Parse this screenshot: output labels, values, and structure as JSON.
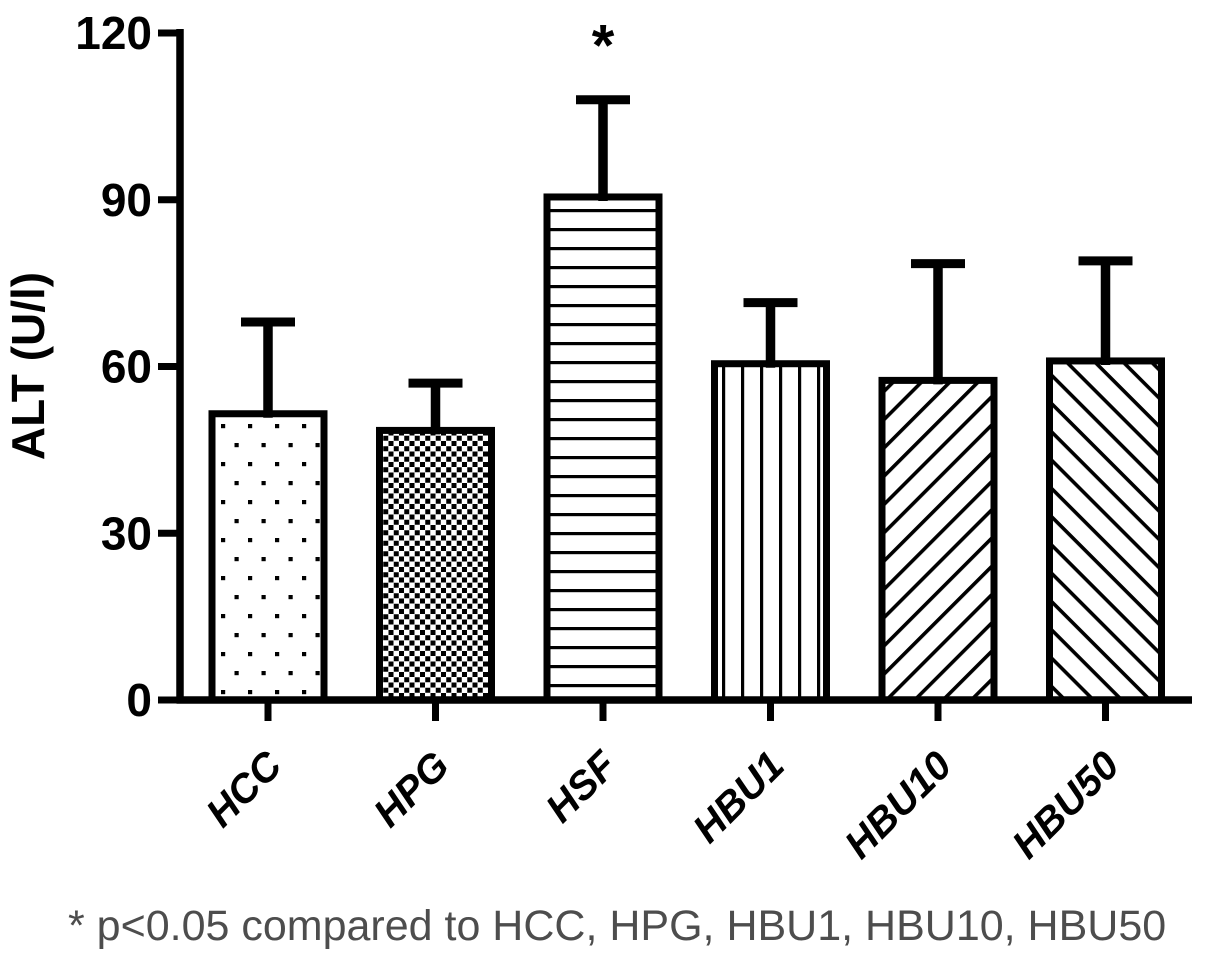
{
  "chart_data": {
    "type": "bar",
    "title": "",
    "xlabel": "",
    "ylabel": "ALT (U/l)",
    "ylim": [
      0,
      120
    ],
    "yticks": [
      0,
      30,
      60,
      90,
      120
    ],
    "grid": false,
    "legend_position": "none",
    "categories": [
      "HCC",
      "HPG",
      "HSF",
      "HBU1",
      "HBU10",
      "HBU50"
    ],
    "series": [
      {
        "name": "ALT",
        "values": [
          51.5,
          48.5,
          90.5,
          60.5,
          57.5,
          61
        ],
        "errors_plus": [
          16.5,
          8.5,
          17.5,
          11,
          21,
          18
        ]
      }
    ],
    "bar_patterns": [
      "sparse-dots",
      "checkerboard",
      "horizontal-lines",
      "vertical-lines",
      "diagonal-up",
      "diagonal-down"
    ],
    "significance_markers": [
      {
        "category": "HSF",
        "marker": "*"
      }
    ],
    "footnote": "* p<0.05 compared to HCC, HPG, HBU1, HBU10, HBU50",
    "colors": {
      "bar_fill": "#ffffff",
      "bar_stroke": "#000000",
      "axis": "#000000",
      "footnote_text": "#4d4d4d"
    }
  }
}
